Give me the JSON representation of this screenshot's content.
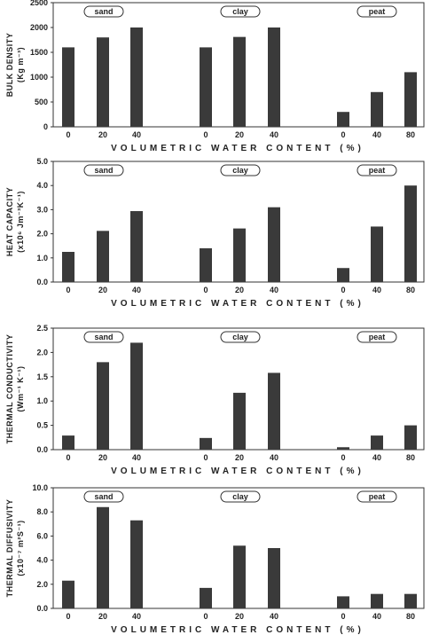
{
  "chart_data": [
    {
      "type": "bar",
      "ylabel_lines": [
        "BULK DENSITY",
        "(Kg m⁻³)"
      ],
      "xlabel": "VOLUMETRIC WATER CONTENT (%)",
      "ylim": [
        0,
        2500
      ],
      "yticks": [
        "0",
        "500",
        "1000",
        "1500",
        "2000",
        "2500"
      ],
      "groups": [
        {
          "name": "sand",
          "categories": [
            "0",
            "20",
            "40"
          ],
          "values": [
            1600,
            1800,
            2000
          ]
        },
        {
          "name": "clay",
          "categories": [
            "0",
            "20",
            "40"
          ],
          "values": [
            1600,
            1810,
            2000
          ]
        },
        {
          "name": "peat",
          "categories": [
            "0",
            "40",
            "80"
          ],
          "values": [
            300,
            700,
            1100
          ]
        }
      ]
    },
    {
      "type": "bar",
      "ylabel_lines": [
        "HEAT CAPACITY",
        "(x10⁶ Jm⁻³K⁻¹)"
      ],
      "xlabel": "VOLUMETRIC WATER CONTENT (%)",
      "ylim": [
        0,
        5.0
      ],
      "yticks": [
        "0.0",
        "1.0",
        "2.0",
        "3.0",
        "4.0",
        "5.0"
      ],
      "groups": [
        {
          "name": "sand",
          "categories": [
            "0",
            "20",
            "40"
          ],
          "values": [
            1.25,
            2.12,
            2.94
          ]
        },
        {
          "name": "clay",
          "categories": [
            "0",
            "20",
            "40"
          ],
          "values": [
            1.4,
            2.22,
            3.1
          ]
        },
        {
          "name": "peat",
          "categories": [
            "0",
            "40",
            "80"
          ],
          "values": [
            0.58,
            2.3,
            4.0
          ]
        }
      ]
    },
    {
      "type": "bar",
      "ylabel_lines": [
        "THERMAL CONDUCTIVITY",
        "(Wm⁻¹ K⁻¹)"
      ],
      "xlabel": "VOLUMETRIC WATER CONTENT (%)",
      "ylim": [
        0,
        2.5
      ],
      "yticks": [
        "0.0",
        "0.5",
        "1.0",
        "1.5",
        "2.0",
        "2.5"
      ],
      "groups": [
        {
          "name": "sand",
          "categories": [
            "0",
            "20",
            "40"
          ],
          "values": [
            0.29,
            1.8,
            2.2
          ]
        },
        {
          "name": "clay",
          "categories": [
            "0",
            "20",
            "40"
          ],
          "values": [
            0.24,
            1.17,
            1.58
          ]
        },
        {
          "name": "peat",
          "categories": [
            "0",
            "40",
            "80"
          ],
          "values": [
            0.05,
            0.29,
            0.5
          ]
        }
      ]
    },
    {
      "type": "bar",
      "ylabel_lines": [
        "THERMAL DIFFUSIVITY",
        "(x10⁻⁷ m²S⁻¹)"
      ],
      "xlabel": "VOLUMETRIC WATER CONTENT (%)",
      "ylim": [
        0,
        10.0
      ],
      "yticks": [
        "0.0",
        "2.0",
        "4.0",
        "6.0",
        "8.0",
        "10.0"
      ],
      "groups": [
        {
          "name": "sand",
          "categories": [
            "0",
            "20",
            "40"
          ],
          "values": [
            2.3,
            8.4,
            7.3
          ]
        },
        {
          "name": "clay",
          "categories": [
            "0",
            "20",
            "40"
          ],
          "values": [
            1.7,
            5.2,
            5.0
          ]
        },
        {
          "name": "peat",
          "categories": [
            "0",
            "40",
            "80"
          ],
          "values": [
            1.0,
            1.2,
            1.2
          ]
        }
      ]
    }
  ]
}
